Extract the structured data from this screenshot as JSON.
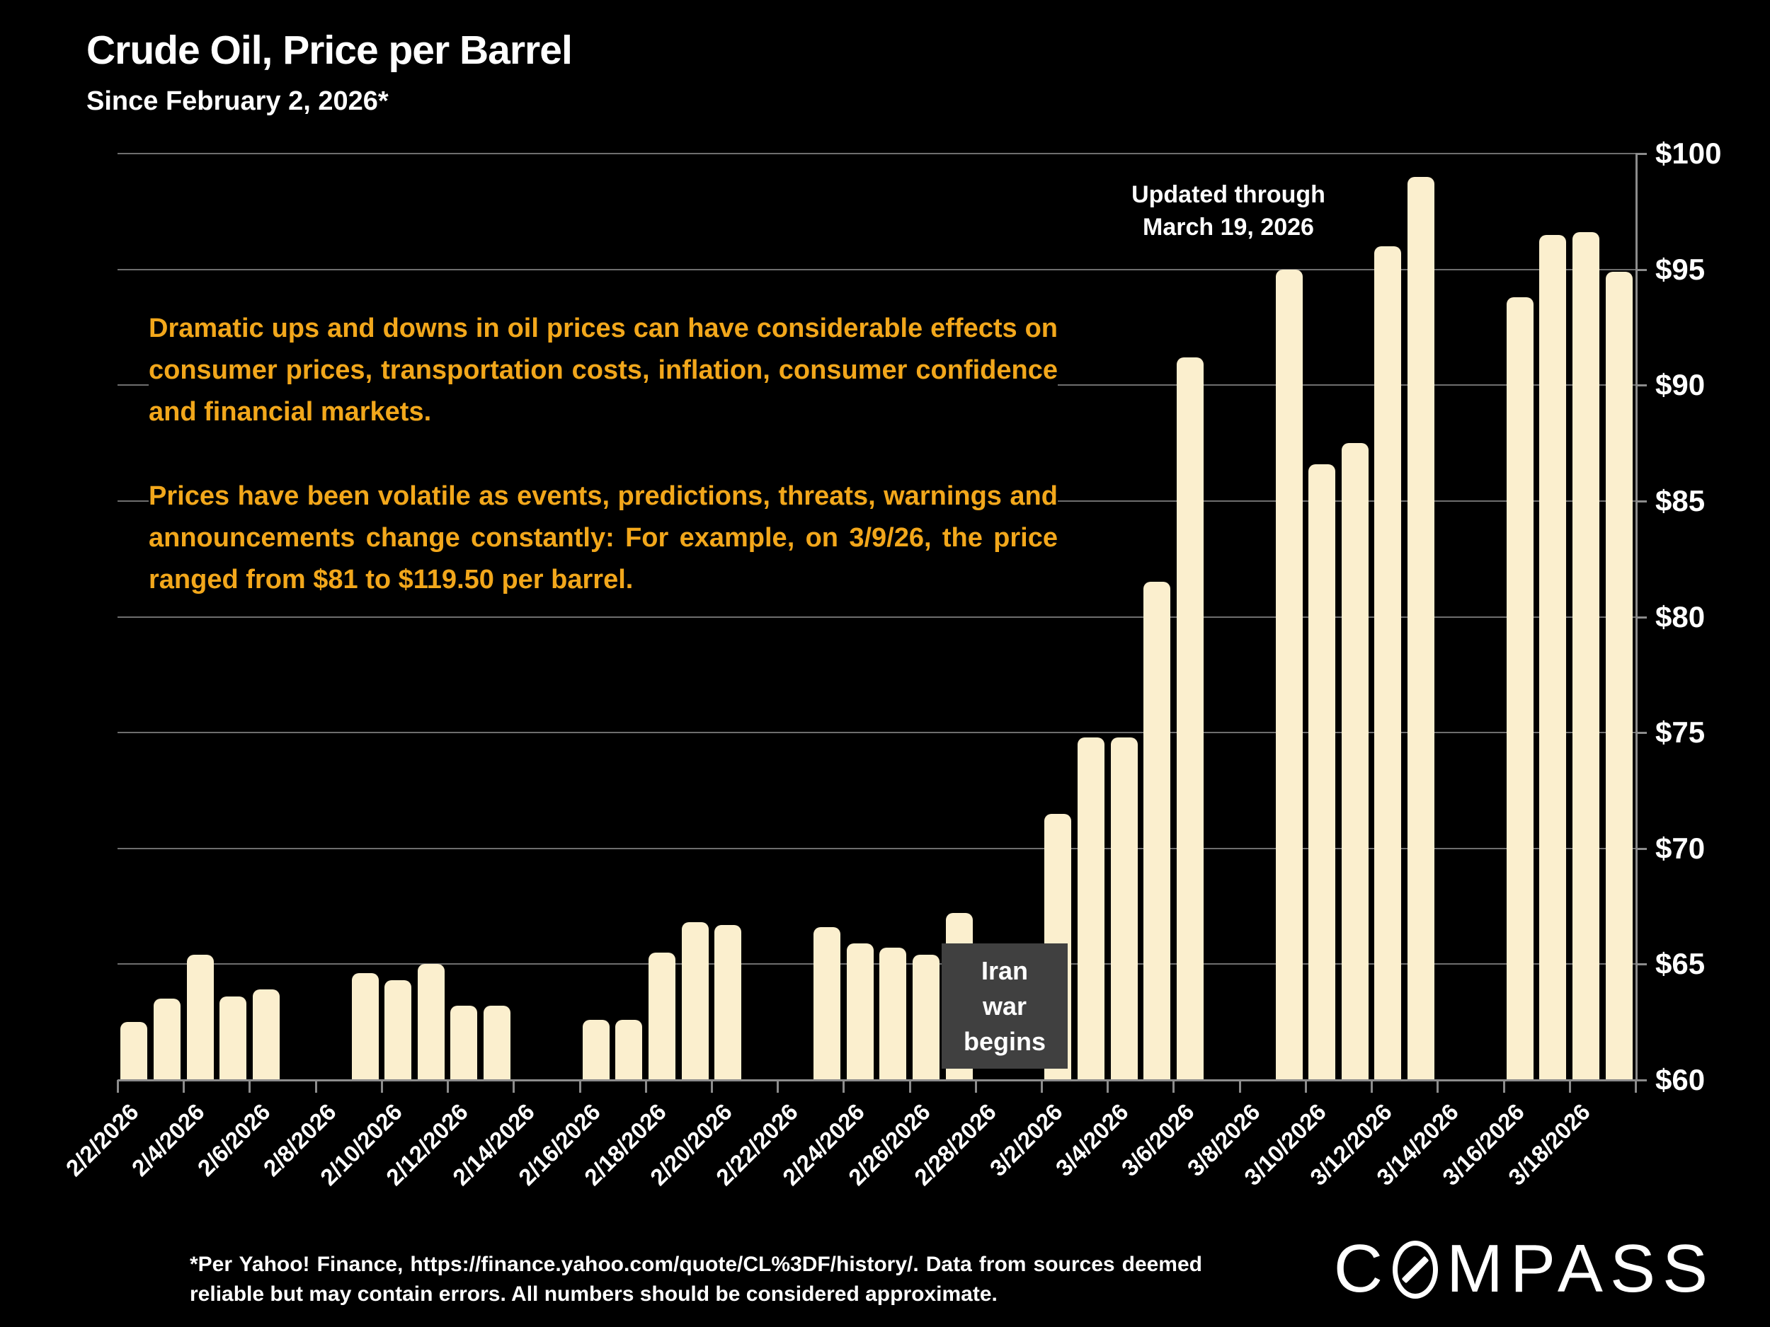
{
  "slide": {
    "title": "Crude Oil, Price per Barrel",
    "subtitle": "Since February 2, 2026*",
    "updated_note_line1": "Updated through",
    "updated_note_line2": "March 19, 2026",
    "paragraph1": "Dramatic ups and downs in oil prices can have considerable effects on consumer prices, transportation costs, inflation, consumer confidence and financial markets.",
    "paragraph2": "Prices have been volatile as events, predictions, threats, warnings and announcements change constantly: For example, on 3/9/26, the price ranged from $81 to $119.50 per barrel.",
    "footnote": "*Per Yahoo! Finance, https://finance.yahoo.com/quote/CL%3DF/history/. Data from sources deemed reliable but may contain errors. All numbers should be considered approximate.",
    "logo_prefix": "C",
    "logo_suffix": "MPASS"
  },
  "colors": {
    "background": "#000000",
    "bar": "#FBEFCE",
    "gridline": "#6E6E6E",
    "axis": "#8C8C8C",
    "accent_text": "#F2A71B",
    "event_box": "#404040",
    "text": "#FFFFFF"
  },
  "chart_data": {
    "type": "bar",
    "title": "Crude Oil, Price per Barrel",
    "subtitle": "Since February 2, 2026*",
    "x_start_date": "2/2/2026",
    "x_end_date": "3/19/2026",
    "ylim": [
      60,
      100
    ],
    "grid": true,
    "legend": "none",
    "yticks": [
      {
        "value": 60,
        "label": "$60"
      },
      {
        "value": 65,
        "label": "$65"
      },
      {
        "value": 70,
        "label": "$70"
      },
      {
        "value": 75,
        "label": "$75"
      },
      {
        "value": 80,
        "label": "$80"
      },
      {
        "value": 85,
        "label": "$85"
      },
      {
        "value": 90,
        "label": "$90"
      },
      {
        "value": 95,
        "label": "$95"
      },
      {
        "value": 100,
        "label": "$100"
      }
    ],
    "xtick_labels": [
      "2/2/2026",
      "2/4/2026",
      "2/6/2026",
      "2/8/2026",
      "2/10/2026",
      "2/12/2026",
      "2/14/2026",
      "2/16/2026",
      "2/18/2026",
      "2/20/2026",
      "2/22/2026",
      "2/24/2026",
      "2/26/2026",
      "2/28/2026",
      "3/2/2026",
      "3/4/2026",
      "3/6/2026",
      "3/8/2026",
      "3/10/2026",
      "3/12/2026",
      "3/14/2026",
      "3/16/2026",
      "3/18/2026"
    ],
    "bars": [
      {
        "date": "2/2/2026",
        "value": 62.5
      },
      {
        "date": "2/3/2026",
        "value": 63.5
      },
      {
        "date": "2/4/2026",
        "value": 65.4
      },
      {
        "date": "2/5/2026",
        "value": 63.6
      },
      {
        "date": "2/6/2026",
        "value": 63.9
      },
      {
        "date": "2/9/2026",
        "value": 64.6
      },
      {
        "date": "2/10/2026",
        "value": 64.3
      },
      {
        "date": "2/11/2026",
        "value": 65.0
      },
      {
        "date": "2/12/2026",
        "value": 63.2
      },
      {
        "date": "2/13/2026",
        "value": 63.2
      },
      {
        "date": "2/16/2026",
        "value": 62.6
      },
      {
        "date": "2/17/2026",
        "value": 62.6
      },
      {
        "date": "2/18/2026",
        "value": 65.5
      },
      {
        "date": "2/19/2026",
        "value": 66.8
      },
      {
        "date": "2/20/2026",
        "value": 66.7
      },
      {
        "date": "2/23/2026",
        "value": 66.6
      },
      {
        "date": "2/24/2026",
        "value": 65.9
      },
      {
        "date": "2/25/2026",
        "value": 65.7
      },
      {
        "date": "2/26/2026",
        "value": 65.4
      },
      {
        "date": "2/27/2026",
        "value": 67.2
      },
      {
        "date": "3/2/2026",
        "value": 71.5
      },
      {
        "date": "3/3/2026",
        "value": 74.8
      },
      {
        "date": "3/4/2026",
        "value": 74.8
      },
      {
        "date": "3/5/2026",
        "value": 81.5
      },
      {
        "date": "3/6/2026",
        "value": 91.2
      },
      {
        "date": "3/9/2026",
        "value": 95.0
      },
      {
        "date": "3/10/2026",
        "value": 86.6
      },
      {
        "date": "3/11/2026",
        "value": 87.5
      },
      {
        "date": "3/12/2026",
        "value": 96.0
      },
      {
        "date": "3/13/2026",
        "value": 99.0
      },
      {
        "date": "3/16/2026",
        "value": 93.8
      },
      {
        "date": "3/17/2026",
        "value": 96.5
      },
      {
        "date": "3/18/2026",
        "value": 96.6
      },
      {
        "date": "3/19/2026",
        "value": 94.9
      }
    ],
    "event_annotation": {
      "lines": [
        "Iran",
        "war",
        "begins"
      ],
      "after_date": "2/27/2026"
    }
  }
}
